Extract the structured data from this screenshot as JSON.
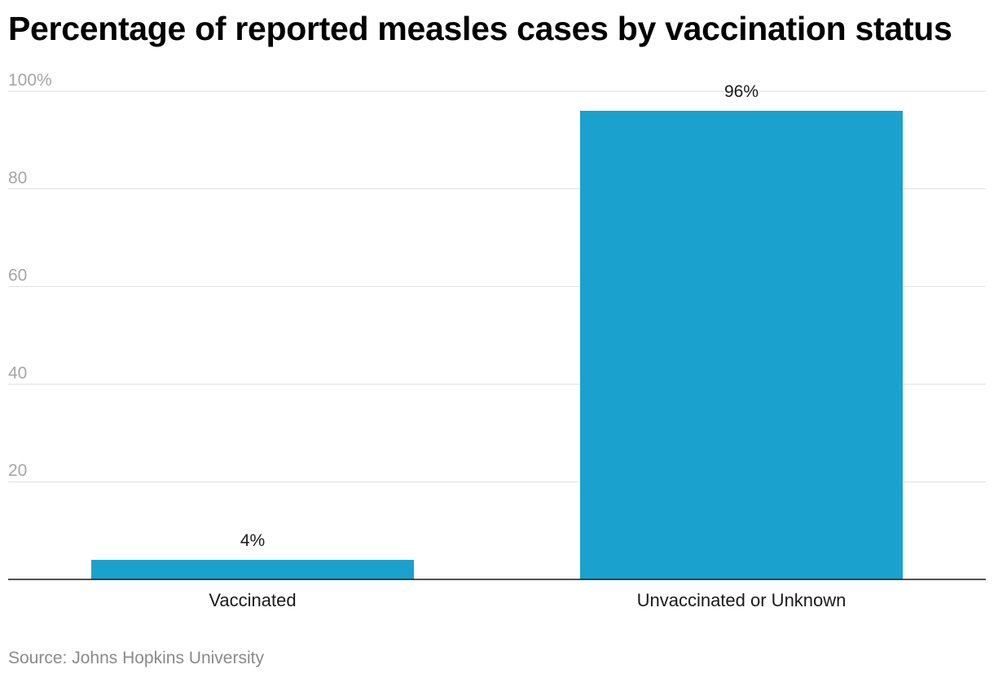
{
  "chart_data": {
    "type": "bar",
    "title": "Percentage of reported measles cases by vaccination status",
    "categories": [
      "Vaccinated",
      "Unvaccinated or Unknown"
    ],
    "values": [
      4,
      96
    ],
    "data_labels": [
      "4%",
      "96%"
    ],
    "ylim": [
      0,
      100
    ],
    "y_ticks": [
      20,
      40,
      60,
      80,
      100
    ],
    "y_tick_labels": [
      "20",
      "40",
      "60",
      "80",
      "100%"
    ],
    "xlabel": "",
    "ylabel": "",
    "grid": true,
    "legend": "none",
    "bar_color": "#1ba1ce",
    "source": "Source: Johns Hopkins University"
  }
}
